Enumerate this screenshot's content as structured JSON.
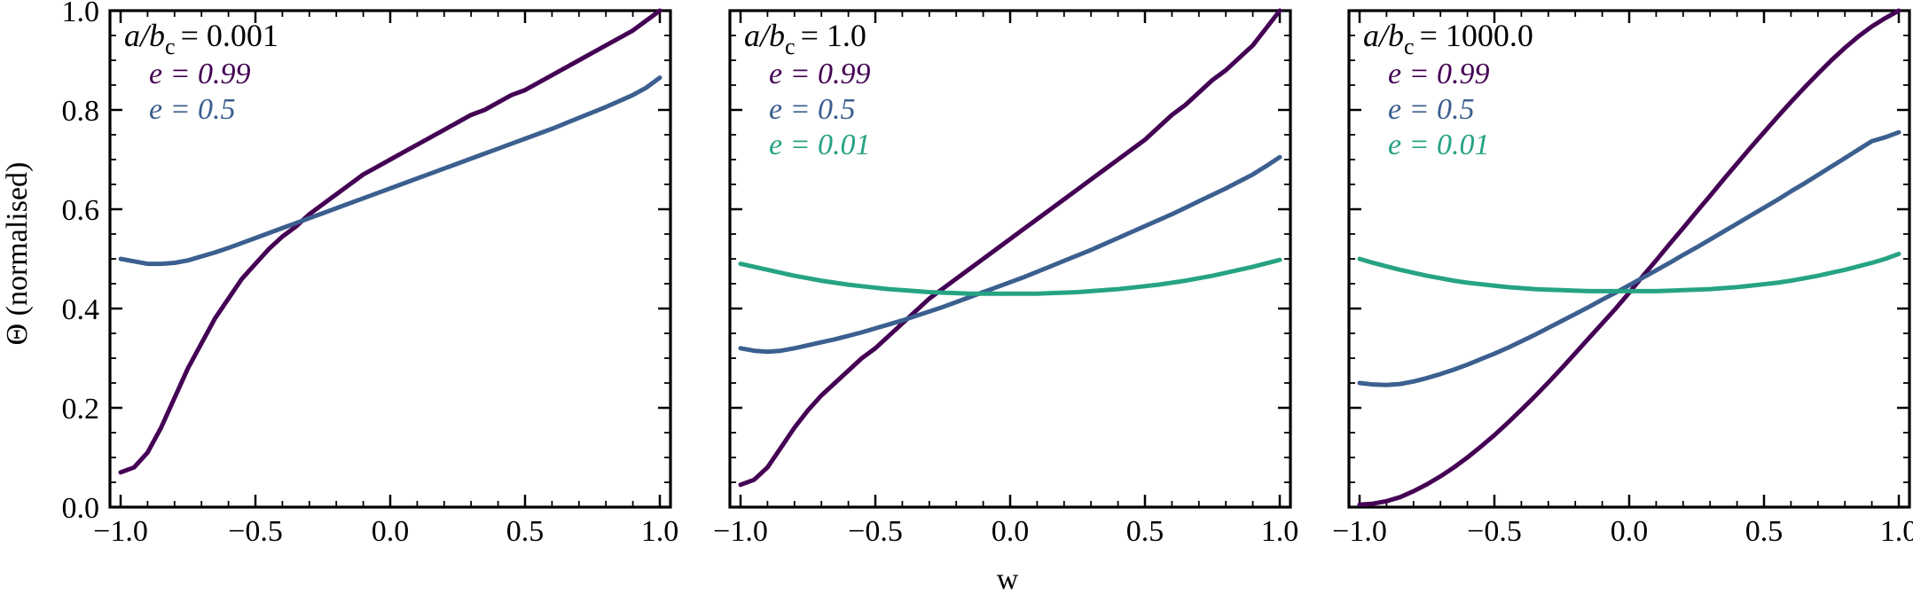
{
  "chart_data": {
    "type": "line",
    "shared": {
      "xlabel": "w",
      "ylabel": "Θ (normalised)",
      "xlim": [
        -1.0,
        1.0
      ],
      "ylim": [
        0.0,
        1.0
      ],
      "xticks": [
        -1.0,
        -0.5,
        0.0,
        0.5,
        1.0
      ],
      "xtick_labels": [
        "−1.0",
        "−0.5",
        "0.0",
        "0.5",
        "1.0"
      ],
      "yticks": [
        0.0,
        0.2,
        0.4,
        0.6,
        0.8,
        1.0
      ],
      "ytick_labels": [
        "0.0",
        "0.2",
        "0.4",
        "0.6",
        "0.8",
        "1.0"
      ]
    },
    "colors": {
      "e099": "#440154",
      "e05": "#3b5f8f",
      "e001": "#26a383"
    },
    "panels": [
      {
        "title_main": "a/b",
        "title_sub": "c",
        "title_value": "= 0.001",
        "series": [
          {
            "name": "e = 0.99",
            "color_key": "e099",
            "x": [
              -1.0,
              -0.95,
              -0.9,
              -0.85,
              -0.8,
              -0.75,
              -0.7,
              -0.65,
              -0.6,
              -0.55,
              -0.5,
              -0.45,
              -0.4,
              -0.35,
              -0.3,
              -0.25,
              -0.2,
              -0.15,
              -0.1,
              -0.05,
              0.0,
              0.05,
              0.1,
              0.15,
              0.2,
              0.25,
              0.3,
              0.35,
              0.4,
              0.45,
              0.5,
              0.55,
              0.6,
              0.65,
              0.7,
              0.75,
              0.8,
              0.85,
              0.9,
              0.95,
              1.0
            ],
            "y": [
              0.07,
              0.08,
              0.11,
              0.16,
              0.22,
              0.28,
              0.33,
              0.38,
              0.42,
              0.46,
              0.49,
              0.52,
              0.545,
              0.565,
              0.59,
              0.61,
              0.63,
              0.65,
              0.67,
              0.685,
              0.7,
              0.715,
              0.73,
              0.745,
              0.76,
              0.775,
              0.79,
              0.8,
              0.815,
              0.83,
              0.84,
              0.855,
              0.87,
              0.885,
              0.9,
              0.915,
              0.93,
              0.945,
              0.96,
              0.98,
              1.0
            ]
          },
          {
            "name": "e = 0.5",
            "color_key": "e05",
            "x": [
              -1.0,
              -0.95,
              -0.9,
              -0.85,
              -0.8,
              -0.75,
              -0.7,
              -0.65,
              -0.6,
              -0.55,
              -0.5,
              -0.45,
              -0.4,
              -0.35,
              -0.3,
              -0.25,
              -0.2,
              -0.15,
              -0.1,
              -0.05,
              0.0,
              0.05,
              0.1,
              0.15,
              0.2,
              0.25,
              0.3,
              0.35,
              0.4,
              0.45,
              0.5,
              0.55,
              0.6,
              0.65,
              0.7,
              0.75,
              0.8,
              0.85,
              0.9,
              0.95,
              1.0
            ],
            "y": [
              0.5,
              0.495,
              0.49,
              0.49,
              0.492,
              0.497,
              0.505,
              0.513,
              0.522,
              0.532,
              0.542,
              0.552,
              0.562,
              0.572,
              0.582,
              0.592,
              0.602,
              0.612,
              0.622,
              0.632,
              0.642,
              0.652,
              0.662,
              0.672,
              0.682,
              0.692,
              0.702,
              0.712,
              0.722,
              0.732,
              0.742,
              0.752,
              0.762,
              0.773,
              0.784,
              0.795,
              0.806,
              0.818,
              0.83,
              0.845,
              0.865
            ]
          }
        ]
      },
      {
        "title_main": "a/b",
        "title_sub": "c",
        "title_value": "= 1.0",
        "series": [
          {
            "name": "e = 0.99",
            "color_key": "e099",
            "x": [
              -1.0,
              -0.95,
              -0.9,
              -0.85,
              -0.8,
              -0.75,
              -0.7,
              -0.65,
              -0.6,
              -0.55,
              -0.5,
              -0.45,
              -0.4,
              -0.35,
              -0.3,
              -0.25,
              -0.2,
              -0.15,
              -0.1,
              -0.05,
              0.0,
              0.05,
              0.1,
              0.15,
              0.2,
              0.25,
              0.3,
              0.35,
              0.4,
              0.45,
              0.5,
              0.55,
              0.6,
              0.65,
              0.7,
              0.75,
              0.8,
              0.85,
              0.9,
              0.95,
              1.0
            ],
            "y": [
              0.045,
              0.055,
              0.08,
              0.12,
              0.16,
              0.195,
              0.225,
              0.25,
              0.275,
              0.3,
              0.32,
              0.345,
              0.37,
              0.395,
              0.42,
              0.44,
              0.46,
              0.48,
              0.5,
              0.52,
              0.54,
              0.56,
              0.58,
              0.6,
              0.62,
              0.64,
              0.66,
              0.68,
              0.7,
              0.72,
              0.74,
              0.765,
              0.79,
              0.81,
              0.835,
              0.86,
              0.88,
              0.905,
              0.93,
              0.965,
              1.0
            ]
          },
          {
            "name": "e = 0.5",
            "color_key": "e05",
            "x": [
              -1.0,
              -0.95,
              -0.9,
              -0.85,
              -0.8,
              -0.75,
              -0.7,
              -0.65,
              -0.6,
              -0.55,
              -0.5,
              -0.45,
              -0.4,
              -0.35,
              -0.3,
              -0.25,
              -0.2,
              -0.15,
              -0.1,
              -0.05,
              0.0,
              0.05,
              0.1,
              0.15,
              0.2,
              0.25,
              0.3,
              0.35,
              0.4,
              0.45,
              0.5,
              0.55,
              0.6,
              0.65,
              0.7,
              0.75,
              0.8,
              0.85,
              0.9,
              0.95,
              1.0
            ],
            "y": [
              0.32,
              0.315,
              0.313,
              0.315,
              0.32,
              0.326,
              0.332,
              0.338,
              0.345,
              0.352,
              0.36,
              0.368,
              0.376,
              0.385,
              0.394,
              0.403,
              0.413,
              0.423,
              0.433,
              0.443,
              0.453,
              0.463,
              0.474,
              0.485,
              0.496,
              0.507,
              0.518,
              0.53,
              0.542,
              0.554,
              0.566,
              0.578,
              0.59,
              0.603,
              0.616,
              0.629,
              0.642,
              0.656,
              0.67,
              0.687,
              0.705
            ]
          },
          {
            "name": "e = 0.01",
            "color_key": "e001",
            "x": [
              -1.0,
              -0.95,
              -0.9,
              -0.85,
              -0.8,
              -0.75,
              -0.7,
              -0.65,
              -0.6,
              -0.55,
              -0.5,
              -0.45,
              -0.4,
              -0.35,
              -0.3,
              -0.25,
              -0.2,
              -0.15,
              -0.1,
              -0.05,
              0.0,
              0.05,
              0.1,
              0.15,
              0.2,
              0.25,
              0.3,
              0.35,
              0.4,
              0.45,
              0.5,
              0.55,
              0.6,
              0.65,
              0.7,
              0.75,
              0.8,
              0.85,
              0.9,
              0.95,
              1.0
            ],
            "y": [
              0.49,
              0.484,
              0.478,
              0.472,
              0.466,
              0.461,
              0.456,
              0.452,
              0.448,
              0.445,
              0.442,
              0.439,
              0.437,
              0.435,
              0.433,
              0.432,
              0.431,
              0.43,
              0.43,
              0.43,
              0.43,
              0.43,
              0.43,
              0.431,
              0.432,
              0.433,
              0.435,
              0.437,
              0.439,
              0.442,
              0.445,
              0.448,
              0.452,
              0.456,
              0.461,
              0.466,
              0.472,
              0.478,
              0.484,
              0.491,
              0.498
            ]
          }
        ]
      },
      {
        "title_main": "a/b",
        "title_sub": "c",
        "title_value": "= 1000.0",
        "series": [
          {
            "name": "e = 0.99",
            "color_key": "e099",
            "x": [
              -1.0,
              -0.95,
              -0.9,
              -0.85,
              -0.8,
              -0.75,
              -0.7,
              -0.65,
              -0.6,
              -0.55,
              -0.5,
              -0.45,
              -0.4,
              -0.35,
              -0.3,
              -0.25,
              -0.2,
              -0.15,
              -0.1,
              -0.05,
              0.0,
              0.05,
              0.1,
              0.15,
              0.2,
              0.25,
              0.3,
              0.35,
              0.4,
              0.45,
              0.5,
              0.55,
              0.6,
              0.65,
              0.7,
              0.75,
              0.8,
              0.85,
              0.9,
              0.95,
              1.0
            ],
            "y": [
              0.005,
              0.007,
              0.012,
              0.02,
              0.032,
              0.046,
              0.062,
              0.08,
              0.1,
              0.122,
              0.145,
              0.17,
              0.196,
              0.223,
              0.251,
              0.28,
              0.31,
              0.34,
              0.37,
              0.4,
              0.432,
              0.465,
              0.497,
              0.53,
              0.562,
              0.595,
              0.627,
              0.66,
              0.692,
              0.724,
              0.755,
              0.786,
              0.816,
              0.845,
              0.873,
              0.9,
              0.925,
              0.948,
              0.968,
              0.985,
              1.0
            ]
          },
          {
            "name": "e = 0.5",
            "color_key": "e05",
            "x": [
              -1.0,
              -0.95,
              -0.9,
              -0.85,
              -0.8,
              -0.75,
              -0.7,
              -0.65,
              -0.6,
              -0.55,
              -0.5,
              -0.45,
              -0.4,
              -0.35,
              -0.3,
              -0.25,
              -0.2,
              -0.15,
              -0.1,
              -0.05,
              0.0,
              0.05,
              0.1,
              0.15,
              0.2,
              0.25,
              0.3,
              0.35,
              0.4,
              0.45,
              0.5,
              0.55,
              0.6,
              0.65,
              0.7,
              0.75,
              0.8,
              0.85,
              0.9,
              0.95,
              1.0
            ],
            "y": [
              0.25,
              0.247,
              0.246,
              0.248,
              0.253,
              0.26,
              0.268,
              0.277,
              0.287,
              0.298,
              0.309,
              0.321,
              0.334,
              0.347,
              0.361,
              0.375,
              0.389,
              0.403,
              0.418,
              0.432,
              0.447,
              0.462,
              0.477,
              0.492,
              0.508,
              0.523,
              0.539,
              0.555,
              0.571,
              0.587,
              0.603,
              0.619,
              0.636,
              0.652,
              0.669,
              0.686,
              0.703,
              0.72,
              0.737,
              0.745,
              0.755
            ]
          },
          {
            "name": "e = 0.01",
            "color_key": "e001",
            "x": [
              -1.0,
              -0.95,
              -0.9,
              -0.85,
              -0.8,
              -0.75,
              -0.7,
              -0.65,
              -0.6,
              -0.55,
              -0.5,
              -0.45,
              -0.4,
              -0.35,
              -0.3,
              -0.25,
              -0.2,
              -0.15,
              -0.1,
              -0.05,
              0.0,
              0.05,
              0.1,
              0.15,
              0.2,
              0.25,
              0.3,
              0.35,
              0.4,
              0.45,
              0.5,
              0.55,
              0.6,
              0.65,
              0.7,
              0.75,
              0.8,
              0.85,
              0.9,
              0.95,
              1.0
            ],
            "y": [
              0.5,
              0.492,
              0.485,
              0.478,
              0.472,
              0.466,
              0.461,
              0.456,
              0.452,
              0.449,
              0.446,
              0.443,
              0.441,
              0.439,
              0.438,
              0.437,
              0.436,
              0.435,
              0.435,
              0.435,
              0.435,
              0.435,
              0.435,
              0.436,
              0.437,
              0.438,
              0.439,
              0.441,
              0.443,
              0.446,
              0.449,
              0.452,
              0.456,
              0.461,
              0.466,
              0.472,
              0.478,
              0.485,
              0.492,
              0.5,
              0.51
            ]
          }
        ]
      }
    ]
  }
}
